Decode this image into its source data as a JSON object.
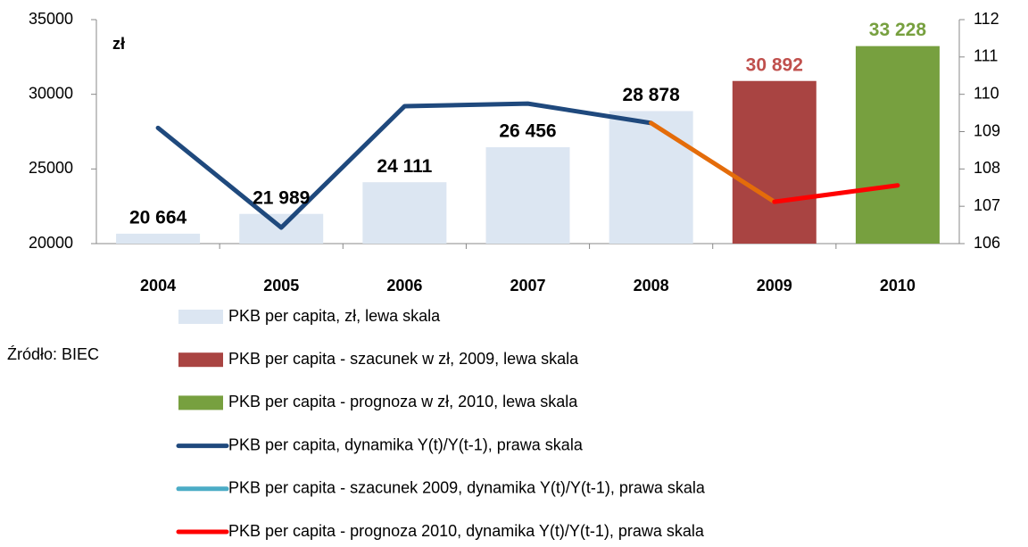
{
  "chart_data": {
    "type": "bar",
    "unit_label": "zł",
    "source": "Źródło: BIEC",
    "categories": [
      "2004",
      "2005",
      "2006",
      "2007",
      "2008",
      "2009",
      "2010"
    ],
    "ylim": [
      20000,
      35000
    ],
    "yticks": [
      20000,
      25000,
      30000,
      35000
    ],
    "y2lim": [
      106,
      112
    ],
    "y2ticks": [
      106,
      107,
      108,
      109,
      110,
      111,
      112
    ],
    "series": [
      {
        "name": "PKB per capita, zł, lewa skala",
        "kind": "bar",
        "color": "#dce6f2",
        "label_color": "#000000",
        "values": [
          20664,
          21989,
          24111,
          26456,
          28878,
          null,
          null
        ],
        "value_labels": [
          "20 664",
          "21 989",
          "24 111",
          "26 456",
          "28 878",
          null,
          null
        ]
      },
      {
        "name": "PKB per capita - szacunek w zł, 2009, lewa skala",
        "kind": "bar",
        "color": "#a94442",
        "label_color": "#c0504d",
        "values": [
          null,
          null,
          null,
          null,
          null,
          30892,
          null
        ],
        "value_labels": [
          null,
          null,
          null,
          null,
          null,
          "30 892",
          null
        ]
      },
      {
        "name": "PKB per capita - prognoza w zł, 2010, lewa skala",
        "kind": "bar",
        "color": "#77a03f",
        "label_color": "#77a03f",
        "values": [
          null,
          null,
          null,
          null,
          null,
          null,
          33228
        ],
        "value_labels": [
          null,
          null,
          null,
          null,
          null,
          null,
          "33 228"
        ]
      },
      {
        "name": "PKB per capita, dynamika Y(t)/Y(t-1), prawa skala",
        "kind": "line",
        "axis": "y2",
        "color": "#1f497d",
        "values": [
          109.1,
          106.43,
          109.68,
          109.75,
          109.23,
          null,
          null
        ]
      },
      {
        "name": "PKB per capita - szacunek 2009, dynamika Y(t)/Y(t-1), prawa skala",
        "kind": "line",
        "axis": "y2",
        "color": "#4bacc6",
        "line_color": "#e46c0a",
        "values": [
          null,
          null,
          null,
          null,
          109.23,
          107.12,
          null
        ]
      },
      {
        "name": "PKB per capita - prognoza 2010, dynamika Y(t)/Y(t-1), prawa skala",
        "kind": "line",
        "axis": "y2",
        "color": "#ff0000",
        "values": [
          null,
          null,
          null,
          null,
          null,
          107.12,
          107.56
        ]
      }
    ]
  }
}
